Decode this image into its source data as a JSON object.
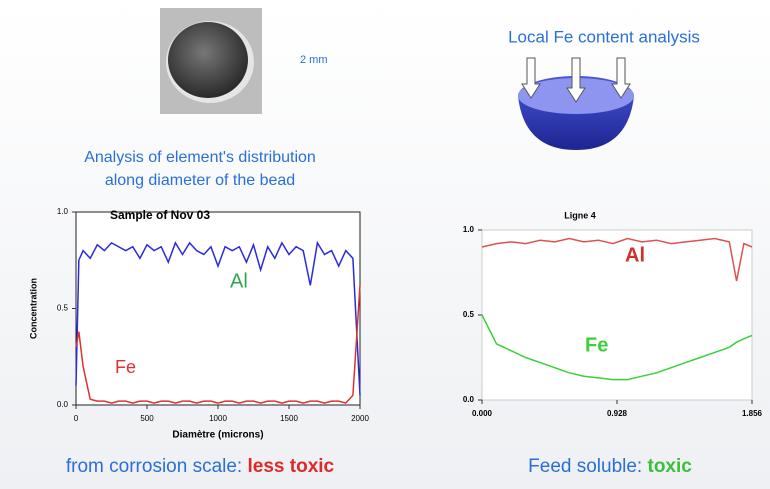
{
  "scale_label": "2 mm",
  "analysis_title": "Local Fe content analysis",
  "left_heading": [
    "Analysis of element's distribution",
    "along diameter of the bead"
  ],
  "left_caption": {
    "text": "from corrosion scale: ",
    "emphasis": "less toxic"
  },
  "right_caption": {
    "text": "Feed soluble: ",
    "emphasis": "toxic"
  },
  "chart_data": [
    {
      "type": "line",
      "title": "Sample of Nov 03",
      "x_label": "Diamètre (microns)",
      "y_label": "Concentration",
      "x": [
        0,
        20,
        50,
        100,
        150,
        200,
        250,
        300,
        350,
        400,
        450,
        500,
        550,
        600,
        650,
        700,
        750,
        800,
        850,
        900,
        950,
        1000,
        1050,
        1100,
        1150,
        1200,
        1250,
        1300,
        1350,
        1400,
        1450,
        1500,
        1550,
        1600,
        1650,
        1700,
        1750,
        1800,
        1850,
        1900,
        1950,
        2000
      ],
      "xlim": [
        0,
        2000
      ],
      "xticks": [
        0,
        500,
        1000,
        1500,
        2000
      ],
      "ylim": [
        0,
        1
      ],
      "yticks": [
        {
          "value": 0,
          "label": "0.0"
        },
        {
          "value": 0.5,
          "label": "0.5"
        },
        {
          "value": 1,
          "label": "1.0"
        }
      ],
      "series": [
        {
          "name": "Al",
          "color": "#2a2ae0",
          "label_color": "#2aa84a",
          "values": [
            0.1,
            0.75,
            0.8,
            0.76,
            0.83,
            0.8,
            0.84,
            0.82,
            0.8,
            0.82,
            0.76,
            0.83,
            0.8,
            0.82,
            0.74,
            0.84,
            0.78,
            0.84,
            0.8,
            0.78,
            0.82,
            0.72,
            0.82,
            0.8,
            0.82,
            0.74,
            0.83,
            0.7,
            0.82,
            0.76,
            0.84,
            0.78,
            0.82,
            0.8,
            0.62,
            0.84,
            0.78,
            0.8,
            0.72,
            0.8,
            0.76,
            0.05
          ]
        },
        {
          "name": "Fe",
          "color": "#e03030",
          "label_color": "#e03030",
          "values": [
            0.3,
            0.38,
            0.2,
            0.03,
            0.02,
            0.02,
            0.01,
            0.02,
            0.02,
            0.01,
            0.02,
            0.02,
            0.01,
            0.02,
            0.02,
            0.01,
            0.02,
            0.02,
            0.01,
            0.02,
            0.02,
            0.01,
            0.02,
            0.02,
            0.01,
            0.02,
            0.02,
            0.01,
            0.02,
            0.02,
            0.01,
            0.02,
            0.02,
            0.01,
            0.02,
            0.02,
            0.01,
            0.02,
            0.02,
            0.01,
            0.05,
            0.62
          ]
        }
      ]
    },
    {
      "type": "line",
      "title": "Ligne 4",
      "x": [
        0,
        0.1,
        0.2,
        0.3,
        0.4,
        0.5,
        0.6,
        0.7,
        0.8,
        0.9,
        1.0,
        1.1,
        1.2,
        1.3,
        1.4,
        1.5,
        1.6,
        1.7,
        1.75,
        1.8,
        1.856
      ],
      "xlim": [
        0,
        1.856
      ],
      "xticks": [
        {
          "value": 0,
          "label": "0.000"
        },
        0.928,
        1.856
      ],
      "ylim": [
        0,
        1
      ],
      "yticks": [
        {
          "value": 0,
          "label": "0.0"
        },
        {
          "value": 0.5,
          "label": "0.5"
        },
        {
          "value": 1,
          "label": "1.0"
        }
      ],
      "series": [
        {
          "name": "Al",
          "color": "#e05050",
          "label_color": "#d03030",
          "values": [
            0.9,
            0.92,
            0.93,
            0.92,
            0.94,
            0.93,
            0.95,
            0.93,
            0.94,
            0.92,
            0.95,
            0.93,
            0.94,
            0.92,
            0.93,
            0.94,
            0.95,
            0.93,
            0.7,
            0.92,
            0.9
          ]
        },
        {
          "name": "Fe",
          "color": "#3ad13a",
          "label_color": "#3ad13a",
          "values": [
            0.5,
            0.33,
            0.29,
            0.25,
            0.22,
            0.19,
            0.16,
            0.14,
            0.13,
            0.12,
            0.12,
            0.14,
            0.16,
            0.19,
            0.22,
            0.25,
            0.28,
            0.31,
            0.34,
            0.36,
            0.38
          ]
        }
      ]
    }
  ]
}
